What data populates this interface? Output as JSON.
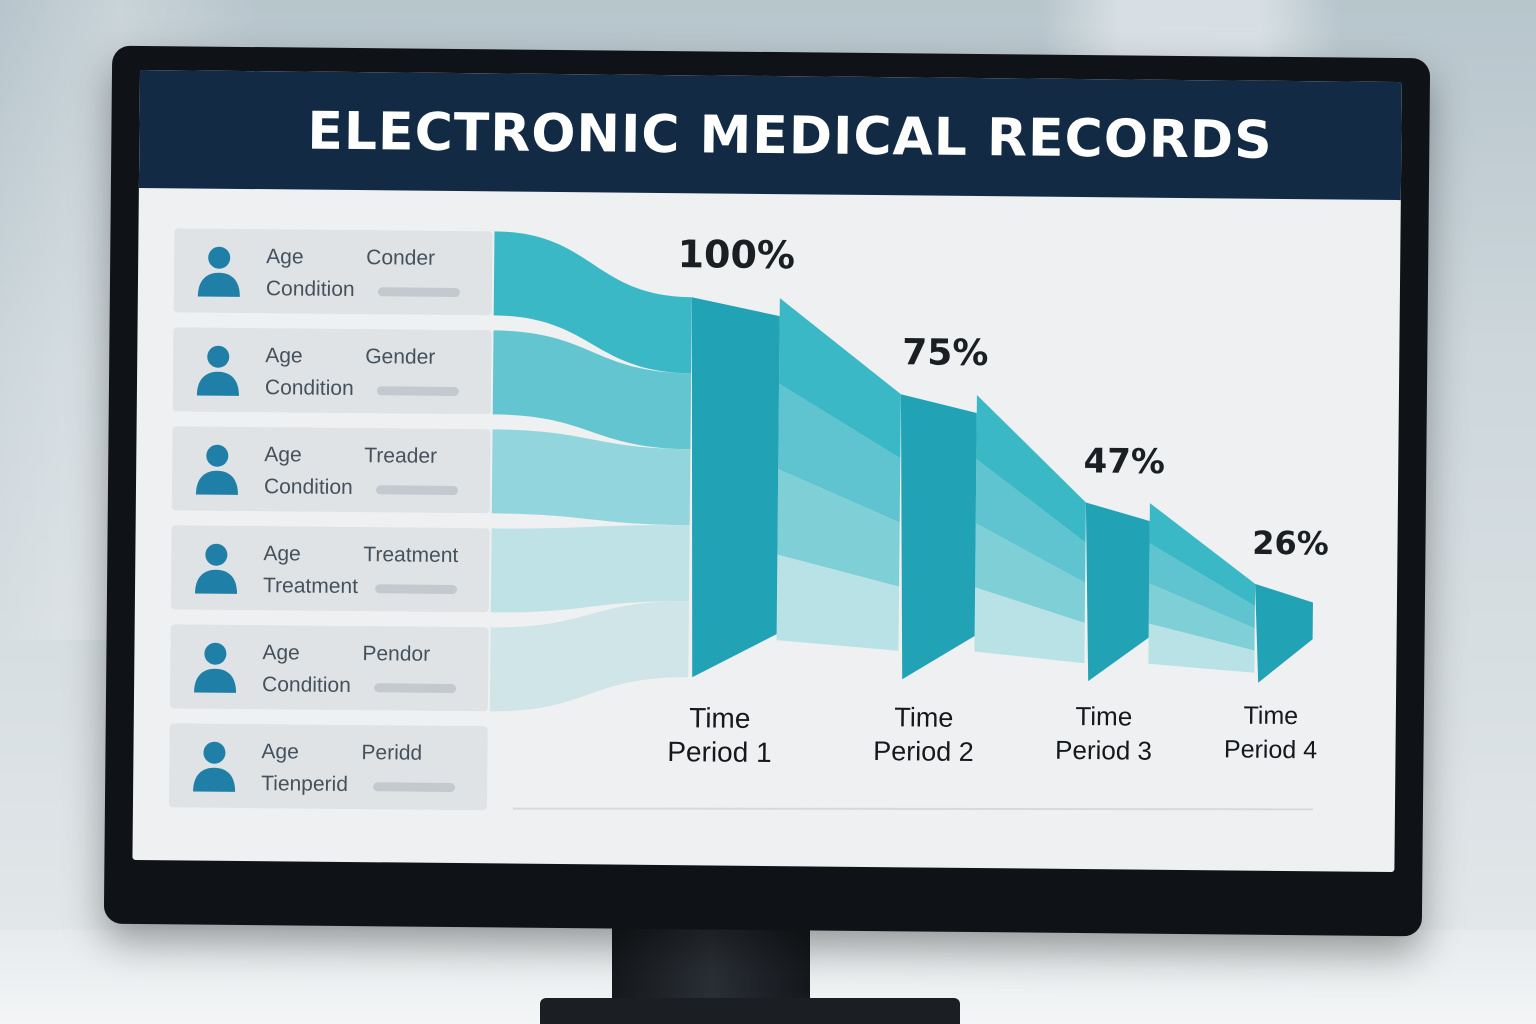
{
  "header": {
    "title": "ELECTRONIC MEDICAL RECORDS"
  },
  "records": [
    {
      "field_age": "Age",
      "field_tag": "Conder",
      "field_condition": "Condition"
    },
    {
      "field_age": "Age",
      "field_tag": "Gender",
      "field_condition": "Condition"
    },
    {
      "field_age": "Age",
      "field_tag": "Treader",
      "field_condition": "Condition"
    },
    {
      "field_age": "Age",
      "field_tag": "Treatment",
      "field_condition": "Treatment"
    },
    {
      "field_age": "Age",
      "field_tag": "Pendor",
      "field_condition": "Condition"
    },
    {
      "field_age": "Age",
      "field_tag": "Peridd",
      "field_condition": "Tienperid"
    }
  ],
  "icons": {
    "record_avatar": "person-icon"
  },
  "colors": {
    "header_bg": "#132a45",
    "teal_dark": "#21a3b5",
    "teal_mid": "#3ab8c5",
    "teal_light": "#7fcfd7",
    "teal_pale": "#b9e2e6",
    "avatar": "#1f7fa6"
  },
  "chart_data": {
    "type": "area",
    "title": "",
    "categories": [
      "Time Period 1",
      "Time Period 2",
      "Time Period 3",
      "Time Period 4"
    ],
    "values": [
      100,
      75,
      47,
      26
    ],
    "value_labels": [
      "100%",
      "75%",
      "47%",
      "26%"
    ],
    "category_labels": [
      [
        "Time",
        "Period 1"
      ],
      [
        "Time",
        "Period 2"
      ],
      [
        "Time",
        "Period 3"
      ],
      [
        "Time",
        "Period 4"
      ]
    ],
    "unit": "%",
    "ylim": [
      0,
      100
    ],
    "grid": false,
    "legend": "none"
  }
}
